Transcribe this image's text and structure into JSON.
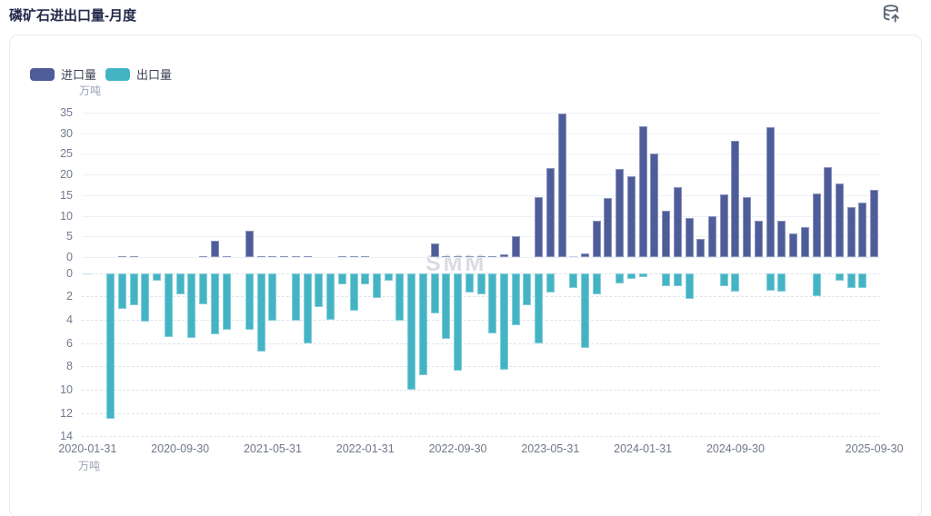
{
  "page": {
    "title": "磷矿石进出口量-月度"
  },
  "toolbar": {
    "export_data_icon": "database-export-icon"
  },
  "legend": {
    "items": [
      {
        "label": "进口量",
        "color": "#4e5d99"
      },
      {
        "label": "出口量",
        "color": "#44b4c5"
      }
    ]
  },
  "chart_data": {
    "type": "bar",
    "title": "磷矿石进出口量-月度",
    "unit_label_top": "万吨",
    "unit_label_bottom": "万吨",
    "watermark": "SMM",
    "legend_entries": [
      "进口量",
      "出口量"
    ],
    "x_tick_labels": [
      "2020-01-31",
      "2020-09-30",
      "2021-05-31",
      "2022-01-31",
      "2022-09-30",
      "2023-05-31",
      "2024-01-31",
      "2024-09-30",
      "2025-09-30"
    ],
    "x_tick_month_indices": [
      0,
      8,
      16,
      24,
      32,
      40,
      48,
      56,
      68
    ],
    "import_axis": {
      "ticks": [
        35,
        30,
        25,
        20,
        15,
        10,
        5,
        0
      ],
      "max": 35,
      "grid": "solid",
      "direction": "up"
    },
    "export_axis": {
      "ticks": [
        0,
        2,
        4,
        6,
        8,
        10,
        12,
        14
      ],
      "max": 14,
      "grid": "dashed",
      "direction": "down"
    },
    "months": [
      "2020-01",
      "2020-02",
      "2020-03",
      "2020-04",
      "2020-05",
      "2020-06",
      "2020-07",
      "2020-08",
      "2020-09",
      "2020-10",
      "2020-11",
      "2020-12",
      "2021-01",
      "2021-02",
      "2021-03",
      "2021-04",
      "2021-05",
      "2021-06",
      "2021-07",
      "2021-08",
      "2021-09",
      "2021-10",
      "2021-11",
      "2021-12",
      "2022-01",
      "2022-02",
      "2022-03",
      "2022-04",
      "2022-05",
      "2022-06",
      "2022-07",
      "2022-08",
      "2022-09",
      "2022-10",
      "2022-11",
      "2022-12",
      "2023-01",
      "2023-02",
      "2023-03",
      "2023-04",
      "2023-05",
      "2023-06",
      "2023-07",
      "2023-08",
      "2023-09",
      "2023-10",
      "2023-11",
      "2023-12",
      "2024-01",
      "2024-02",
      "2024-03",
      "2024-04",
      "2024-05",
      "2024-06",
      "2024-07",
      "2024-08",
      "2024-09",
      "2024-10",
      "2024-11",
      "2024-12",
      "2025-01",
      "2025-02",
      "2025-03",
      "2025-04",
      "2025-05",
      "2025-06",
      "2025-07",
      "2025-08",
      "2025-09"
    ],
    "series": [
      {
        "name": "进口量",
        "color": "#4e5d99",
        "pale_indices": [
          42
        ],
        "values": [
          0,
          0,
          0,
          0.15,
          0.15,
          0,
          0,
          0,
          0,
          0,
          0.3,
          3.9,
          0.25,
          0,
          6.3,
          0.25,
          0.15,
          0.15,
          0.1,
          0.1,
          0,
          0,
          0.15,
          0.15,
          0.1,
          0,
          0,
          0,
          0,
          0,
          3.2,
          0.25,
          0.2,
          0.1,
          0.15,
          0.1,
          0.6,
          5.1,
          0,
          14.5,
          21.5,
          34.8,
          0.3,
          0.8,
          8.7,
          14.4,
          21.3,
          19.5,
          31.6,
          25.0,
          11.2,
          17.0,
          9.5,
          4.3,
          9.8,
          15.2,
          28.1,
          14.5,
          8.9,
          31.5,
          8.9,
          5.7,
          7.3,
          15.5,
          21.9,
          17.9,
          12.0,
          13.3,
          16.3
        ]
      },
      {
        "name": "出口量",
        "color": "#44b4c5",
        "pale_indices": [
          0
        ],
        "values": [
          0.15,
          0,
          12.5,
          3.1,
          2.8,
          4.2,
          0.65,
          5.5,
          1.8,
          5.55,
          2.65,
          5.25,
          4.9,
          0,
          4.9,
          6.7,
          4.1,
          0,
          4.1,
          6.0,
          2.9,
          4.0,
          1.0,
          3.2,
          1.0,
          2.15,
          0.7,
          4.1,
          10.0,
          8.75,
          3.45,
          5.65,
          8.4,
          1.65,
          1.8,
          5.15,
          8.25,
          4.5,
          2.8,
          6.05,
          1.65,
          0,
          1.25,
          6.4,
          1.8,
          0,
          0.9,
          0.5,
          0.35,
          0,
          1.1,
          1.1,
          2.2,
          0,
          0,
          1.1,
          1.6,
          0,
          0,
          1.5,
          1.6,
          0,
          0,
          2.0,
          0,
          0.65,
          1.3,
          1.3,
          0
        ]
      }
    ]
  }
}
